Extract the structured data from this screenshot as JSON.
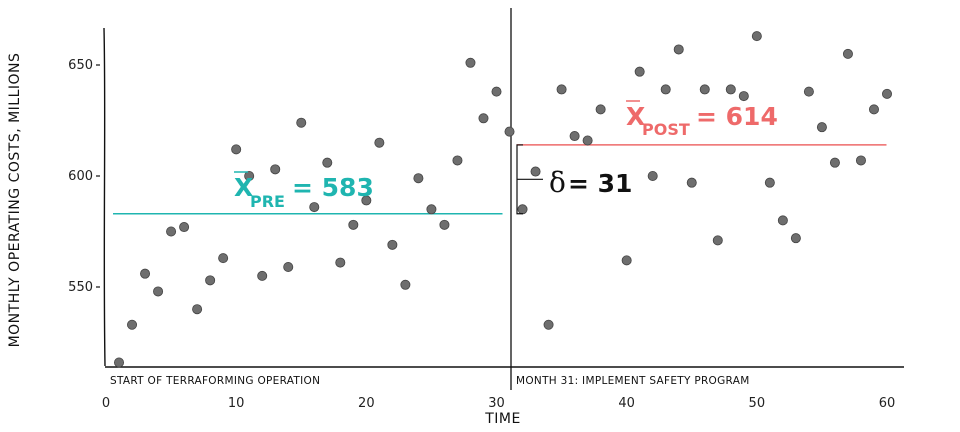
{
  "chart_data": {
    "type": "scatter",
    "xlabel": "TIME",
    "ylabel": "MONTHLY OPERATING COSTS, MILLIONS",
    "xlim": [
      0,
      61
    ],
    "ylim": [
      512,
      666
    ],
    "x_ticks": [
      0,
      10,
      20,
      30,
      40,
      50,
      60
    ],
    "y_ticks": [
      550,
      600,
      650
    ],
    "grid": false,
    "point_color": "#6e6e6e",
    "points": [
      {
        "x": 1,
        "y": 516
      },
      {
        "x": 2,
        "y": 533
      },
      {
        "x": 3,
        "y": 556
      },
      {
        "x": 4,
        "y": 548
      },
      {
        "x": 5,
        "y": 575
      },
      {
        "x": 6,
        "y": 577
      },
      {
        "x": 7,
        "y": 540
      },
      {
        "x": 8,
        "y": 553
      },
      {
        "x": 9,
        "y": 563
      },
      {
        "x": 10,
        "y": 612
      },
      {
        "x": 11,
        "y": 600
      },
      {
        "x": 12,
        "y": 555
      },
      {
        "x": 13,
        "y": 603
      },
      {
        "x": 14,
        "y": 559
      },
      {
        "x": 15,
        "y": 624
      },
      {
        "x": 16,
        "y": 586
      },
      {
        "x": 17,
        "y": 606
      },
      {
        "x": 18,
        "y": 561
      },
      {
        "x": 19,
        "y": 578
      },
      {
        "x": 20,
        "y": 589
      },
      {
        "x": 21,
        "y": 615
      },
      {
        "x": 22,
        "y": 569
      },
      {
        "x": 23,
        "y": 551
      },
      {
        "x": 24,
        "y": 599
      },
      {
        "x": 25,
        "y": 585
      },
      {
        "x": 26,
        "y": 578
      },
      {
        "x": 27,
        "y": 607
      },
      {
        "x": 28,
        "y": 651
      },
      {
        "x": 29,
        "y": 626
      },
      {
        "x": 30,
        "y": 638
      },
      {
        "x": 31,
        "y": 620
      },
      {
        "x": 32,
        "y": 585
      },
      {
        "x": 33,
        "y": 602
      },
      {
        "x": 34,
        "y": 533
      },
      {
        "x": 35,
        "y": 639
      },
      {
        "x": 36,
        "y": 618
      },
      {
        "x": 37,
        "y": 616
      },
      {
        "x": 38,
        "y": 630
      },
      {
        "x": 40,
        "y": 562
      },
      {
        "x": 41,
        "y": 647
      },
      {
        "x": 42,
        "y": 600
      },
      {
        "x": 43,
        "y": 639
      },
      {
        "x": 44,
        "y": 657
      },
      {
        "x": 45,
        "y": 597
      },
      {
        "x": 46,
        "y": 639
      },
      {
        "x": 47,
        "y": 571
      },
      {
        "x": 48,
        "y": 639
      },
      {
        "x": 49,
        "y": 636
      },
      {
        "x": 50,
        "y": 663
      },
      {
        "x": 51,
        "y": 597
      },
      {
        "x": 52,
        "y": 580
      },
      {
        "x": 53,
        "y": 572
      },
      {
        "x": 54,
        "y": 638
      },
      {
        "x": 55,
        "y": 622
      },
      {
        "x": 56,
        "y": 606
      },
      {
        "x": 57,
        "y": 655
      },
      {
        "x": 58,
        "y": 607
      },
      {
        "x": 59,
        "y": 630
      },
      {
        "x": 60,
        "y": 637
      }
    ],
    "intervention_x": 31,
    "pre_mean": {
      "value": 583,
      "x_start": 1,
      "x_end": 30,
      "color": "#1fb5b0",
      "label_symbol": "X",
      "label_sub": "PRE",
      "label_value": "= 583"
    },
    "post_mean": {
      "value": 614,
      "x_start": 32,
      "x_end": 59.5,
      "color": "#ee6a6a",
      "label_symbol": "X",
      "label_sub": "POST",
      "label_value": "= 614"
    },
    "delta": {
      "symbol": "δ",
      "text": "= 31",
      "color": "#111111"
    },
    "annotations": {
      "start": "START OF TERRAFORMING OPERATION",
      "intervention": "MONTH 31: IMPLEMENT SAFETY PROGRAM"
    }
  }
}
